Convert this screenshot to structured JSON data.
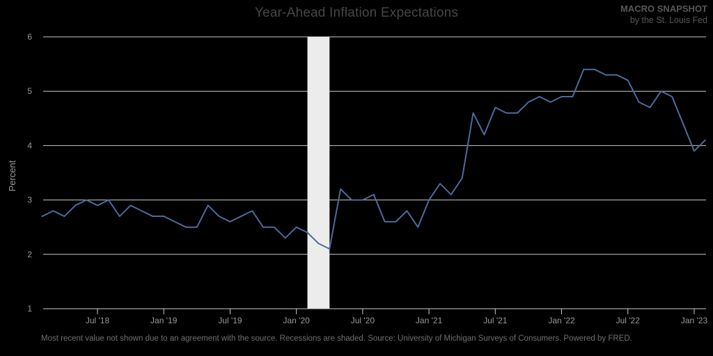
{
  "header": {
    "title": "Year-Ahead Inflation Expectations",
    "brand": "MACRO SNAPSHOT",
    "brand_sub": "by the St. Louis Fed"
  },
  "footnote": "Most recent value not shown due to an agreement with the source. Recessions are shaded. Source: University of Michigan Surveys of Consumers. Powered by FRED.",
  "chart_data": {
    "type": "line",
    "title": "Year-Ahead Inflation Expectations",
    "ylabel": "Percent",
    "ylim": [
      1,
      6
    ],
    "y_ticks": [
      1,
      2,
      3,
      4,
      5,
      6
    ],
    "frequency": "monthly",
    "months_start": "2018-02",
    "months_end": "2023-02",
    "x_ticks": [
      {
        "label": "Jul '18",
        "index": 5
      },
      {
        "label": "Jan '19",
        "index": 11
      },
      {
        "label": "Jul '19",
        "index": 17
      },
      {
        "label": "Jan '20",
        "index": 23
      },
      {
        "label": "Jul '20",
        "index": 29
      },
      {
        "label": "Jan '21",
        "index": 35
      },
      {
        "label": "Jul '21",
        "index": 41
      },
      {
        "label": "Jan '22",
        "index": 47
      },
      {
        "label": "Jul '22",
        "index": 53
      },
      {
        "label": "Jan '23",
        "index": 59
      }
    ],
    "series": [
      {
        "name": "Year-ahead inflation expectations",
        "color": "#4a6c9e",
        "values": [
          2.7,
          2.8,
          2.7,
          2.9,
          3.0,
          2.9,
          3.0,
          2.7,
          2.9,
          2.8,
          2.7,
          2.7,
          2.6,
          2.5,
          2.5,
          2.9,
          2.7,
          2.6,
          2.7,
          2.8,
          2.5,
          2.5,
          2.3,
          2.5,
          2.4,
          2.2,
          2.1,
          3.2,
          3.0,
          3.0,
          3.1,
          2.6,
          2.6,
          2.8,
          2.5,
          3.0,
          3.3,
          3.1,
          3.4,
          4.6,
          4.2,
          4.7,
          4.6,
          4.6,
          4.8,
          4.9,
          4.8,
          4.9,
          4.9,
          5.4,
          5.4,
          5.3,
          5.3,
          5.2,
          4.8,
          4.7,
          5.0,
          4.9,
          4.4,
          3.9,
          4.1
        ]
      }
    ],
    "recession_bands": [
      {
        "start_index": 24,
        "end_index": 26,
        "start_month": "2020-02",
        "end_month": "2020-04"
      }
    ],
    "colors": {
      "band": "#ececec",
      "grid": "#cccccc",
      "tick_text": "#9a9a9a"
    },
    "grid": "on",
    "legend": "none"
  }
}
